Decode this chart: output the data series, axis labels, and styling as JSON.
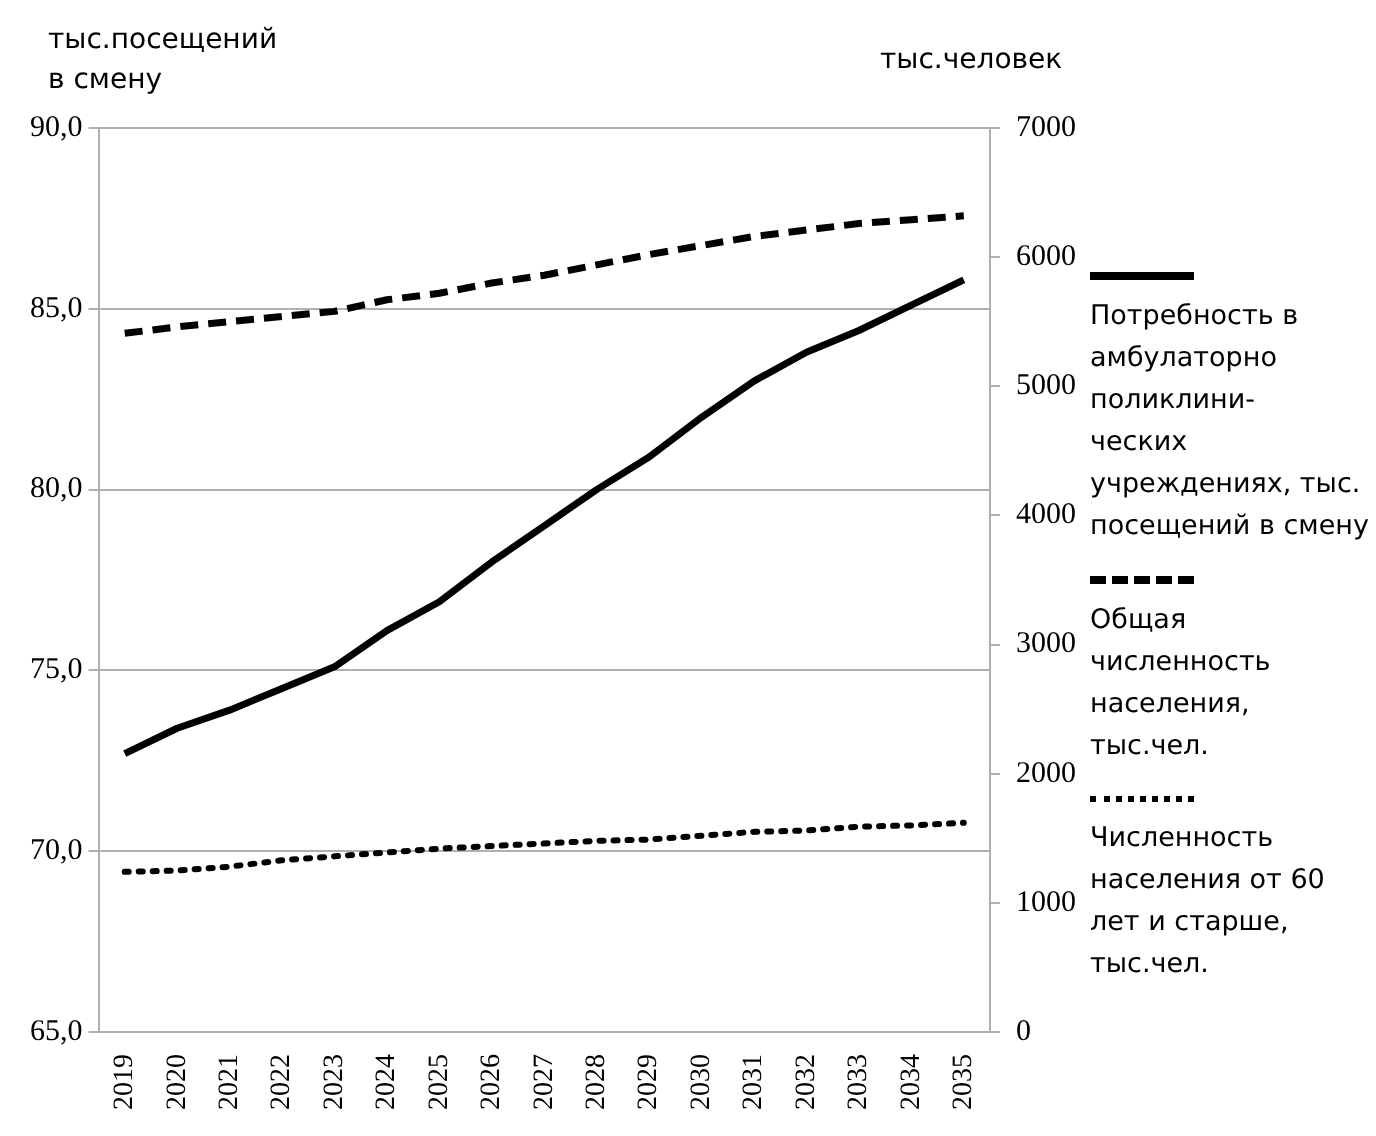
{
  "chart_data": {
    "type": "line",
    "ylabel": "тыс.посещений\nв смену",
    "y2label": "тыс.человек",
    "categories": [
      "2019",
      "2020",
      "2021",
      "2022",
      "2023",
      "2024",
      "2025",
      "2026",
      "2027",
      "2028",
      "2029",
      "2030",
      "2031",
      "2032",
      "2033",
      "2034",
      "2035"
    ],
    "series": [
      {
        "name": "Потребность в амбулаторно поликлини-\nческих учреждениях, тыс. посещений в смену",
        "color": "#000000",
        "line_style": "solid",
        "values": [
          72.7,
          73.4,
          73.9,
          74.5,
          75.1,
          76.1,
          76.9,
          78.0,
          79.0,
          80.0,
          80.9,
          82.0,
          83.0,
          83.8,
          84.4,
          85.1,
          85.8
        ]
      },
      {
        "name": "Общая численность населения, тыс.чел.",
        "color": "#000000",
        "line_style": "dashed",
        "axis": "y2",
        "values": [
          5410,
          5460,
          5500,
          5540,
          5580,
          5670,
          5720,
          5800,
          5860,
          5940,
          6020,
          6090,
          6160,
          6210,
          6260,
          6290,
          6320
        ]
      },
      {
        "name": "Численность населения от 60 лет и старше, тыс.чел.",
        "color": "#000000",
        "line_style": "dotted",
        "axis": "y2",
        "values": [
          1240,
          1250,
          1280,
          1330,
          1360,
          1390,
          1420,
          1440,
          1460,
          1480,
          1490,
          1520,
          1550,
          1560,
          1590,
          1600,
          1620
        ]
      }
    ],
    "ylim": [
      65,
      90
    ],
    "yticks": [
      {
        "value": 65,
        "label": "65,0"
      },
      {
        "value": 70,
        "label": "70,0"
      },
      {
        "value": 75,
        "label": "75,0"
      },
      {
        "value": 80,
        "label": "80,0"
      },
      {
        "value": 85,
        "label": "85,0"
      },
      {
        "value": 90,
        "label": "90,0"
      }
    ],
    "y2lim": [
      0,
      7000
    ],
    "y2ticks": [
      0,
      1000,
      2000,
      3000,
      4000,
      5000,
      6000,
      7000
    ],
    "grid": "y",
    "legend": "right",
    "marker": "none"
  }
}
